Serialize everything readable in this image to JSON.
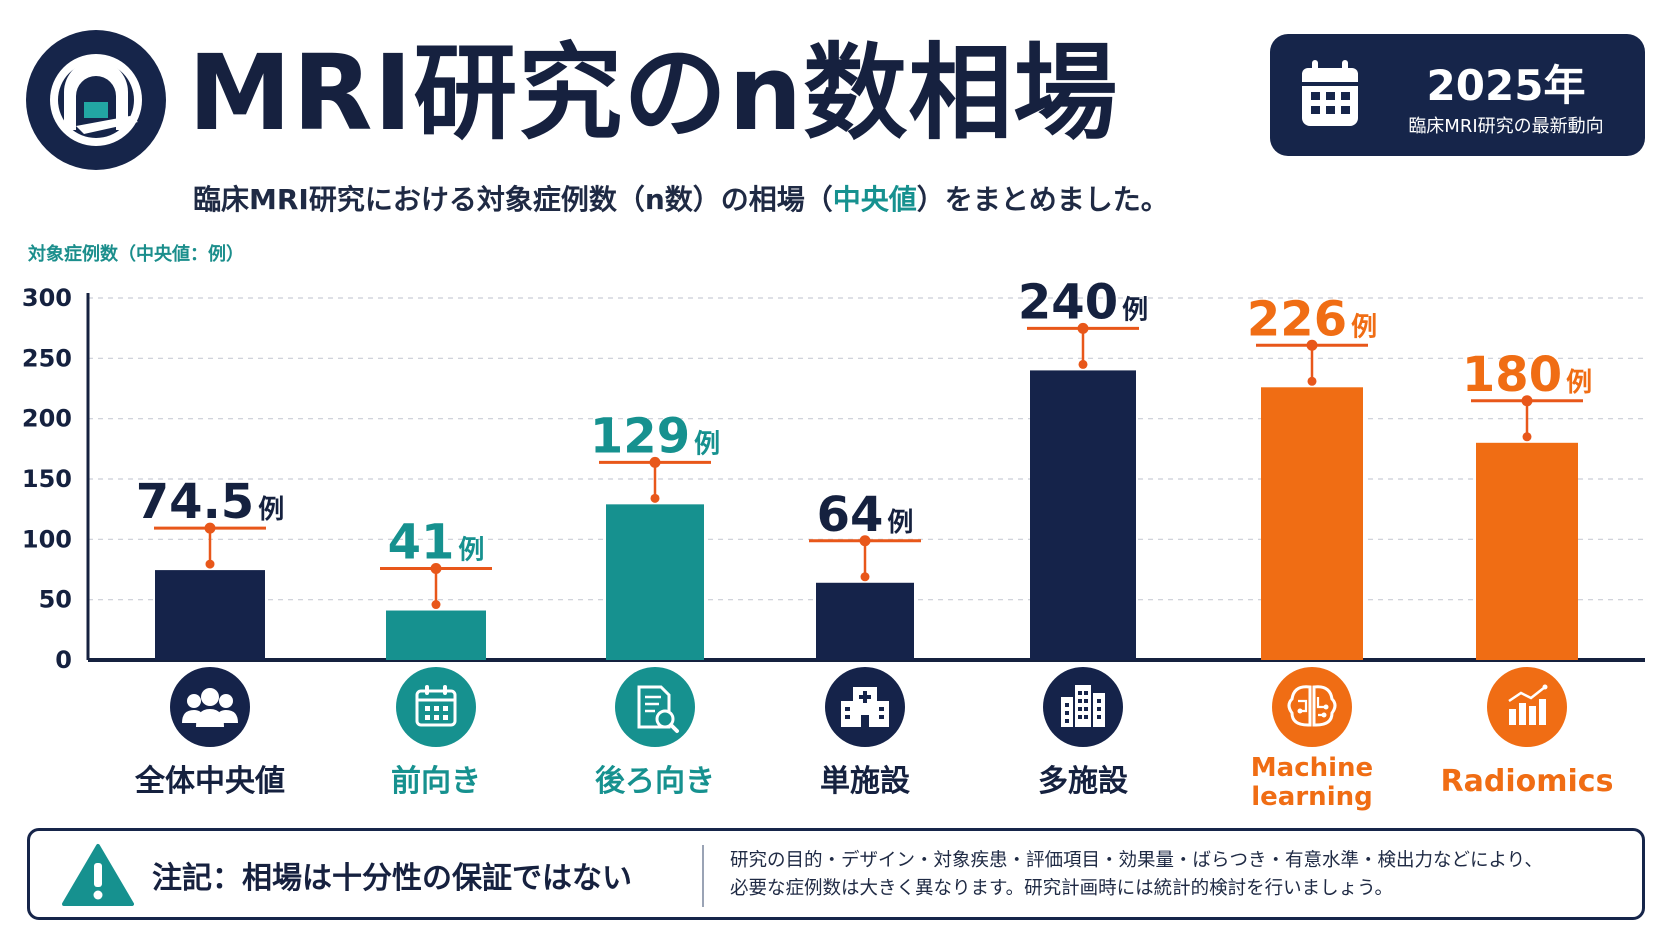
{
  "header": {
    "title": "MRI研究のn数相場",
    "year": "2025年",
    "year_sub": "臨床MRI研究の最新動向",
    "logo_icon": "mri-scanner-icon",
    "calendar_icon": "calendar-icon"
  },
  "subtitle": {
    "before": "臨床MRI研究における対象症例数（n数）の相場（",
    "highlight": "中央値",
    "after": "）をまとめました。"
  },
  "chart_data": {
    "type": "bar",
    "ylabel": "対象症例数（中央値：例）",
    "ylim": [
      0,
      300
    ],
    "yticks": [
      0,
      50,
      100,
      150,
      200,
      250,
      300
    ],
    "grid": true,
    "unit": "例",
    "categories": [
      "全体中央値",
      "前向き",
      "後ろ向き",
      "単施設",
      "多施設",
      "Machine learning",
      "Radiomics"
    ],
    "values": [
      74.5,
      41,
      129,
      64,
      240,
      226,
      180
    ],
    "value_labels": [
      "74.5",
      "41",
      "129",
      "64",
      "240",
      "226",
      "180"
    ],
    "bar_colors": [
      "#15234a",
      "#16918f",
      "#16918f",
      "#15234a",
      "#15234a",
      "#f06d14",
      "#f06d14"
    ],
    "label_colors": [
      "#15213f",
      "#16918f",
      "#16918f",
      "#15213f",
      "#15213f",
      "#f06d14",
      "#f06d14"
    ],
    "category_icons": [
      "people-group-icon",
      "calendar-icon",
      "document-search-icon",
      "hospital-icon",
      "buildings-icon",
      "brain-circuit-icon",
      "bar-chart-icon"
    ],
    "marker_color": "#e8571a"
  },
  "note": {
    "heading": "注記：相場は十分性の保証ではない",
    "line1": "研究の目的・デザイン・対象疾患・評価項目・効果量・ばらつき・有意水準・検出力などにより、",
    "line2": "必要な症例数は大きく異なります。研究計画時には統計的検討を行いましょう。",
    "icon": "warning-icon"
  },
  "colors": {
    "navy": "#16254a",
    "teal": "#16918f",
    "orange": "#f06d14"
  }
}
